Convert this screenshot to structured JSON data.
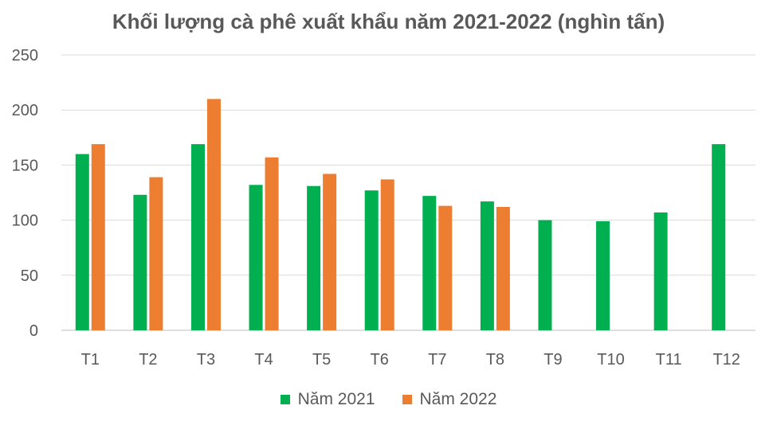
{
  "chart_data": {
    "type": "bar",
    "title": "Khối lượng cà phê xuất khẩu năm 2021-2022 (nghìn tấn)",
    "xlabel": "",
    "ylabel": "",
    "categories": [
      "T1",
      "T2",
      "T3",
      "T4",
      "T5",
      "T6",
      "T7",
      "T8",
      "T9",
      "T10",
      "T11",
      "T12"
    ],
    "series": [
      {
        "name": "Năm 2021",
        "color": "#00B050",
        "values": [
          160,
          123,
          169,
          132,
          131,
          127,
          122,
          117,
          100,
          99,
          107,
          169
        ]
      },
      {
        "name": "Năm 2022",
        "color": "#ED7D31",
        "values": [
          169,
          139,
          210,
          157,
          142,
          137,
          113,
          112,
          null,
          null,
          null,
          null
        ]
      }
    ],
    "ylim": [
      0,
      250
    ],
    "yticks": [
      0,
      50,
      100,
      150,
      200,
      250
    ],
    "grid": true,
    "legend_position": "bottom"
  }
}
